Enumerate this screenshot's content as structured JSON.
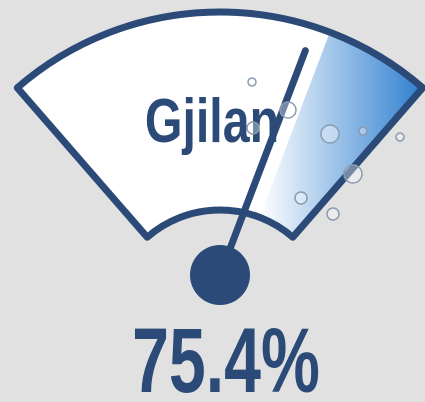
{
  "chart_data": {
    "type": "gauge",
    "title": "Gjilan",
    "value": 75.4,
    "value_label": "75.4%",
    "ylim": [
      0,
      100
    ],
    "color": "#2b4a78",
    "fill_color": "#2f7fcf"
  }
}
